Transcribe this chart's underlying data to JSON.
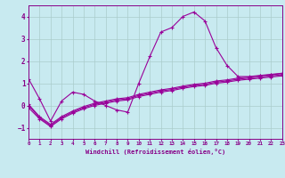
{
  "xlabel": "Windchill (Refroidissement éolien,°C)",
  "bg_color": "#c8eaf0",
  "line_color": "#990099",
  "xlim": [
    0,
    23
  ],
  "ylim": [
    -1.5,
    4.5
  ],
  "yticks": [
    -1,
    0,
    1,
    2,
    3,
    4
  ],
  "xticks": [
    0,
    1,
    2,
    3,
    4,
    5,
    6,
    7,
    8,
    9,
    10,
    11,
    12,
    13,
    14,
    15,
    16,
    17,
    18,
    19,
    20,
    21,
    22,
    23
  ],
  "series1_x": [
    0,
    1,
    2,
    3,
    4,
    5,
    6,
    7,
    8,
    9,
    10,
    11,
    12,
    13,
    14,
    15,
    16,
    17,
    18,
    19,
    20,
    21,
    22,
    23
  ],
  "series1_y": [
    1.2,
    0.3,
    -0.7,
    0.2,
    0.6,
    0.5,
    0.2,
    0.0,
    -0.2,
    -0.3,
    1.0,
    2.2,
    3.3,
    3.5,
    4.0,
    4.2,
    3.8,
    2.6,
    1.8,
    1.3,
    1.3,
    1.35,
    1.4,
    1.45
  ],
  "series2_x": [
    0,
    1,
    2,
    3,
    4,
    5,
    6,
    7,
    8,
    9,
    10,
    11,
    12,
    13,
    14,
    15,
    16,
    17,
    18,
    19,
    20,
    21,
    22,
    23
  ],
  "series2_y": [
    0.05,
    -0.5,
    -0.85,
    -0.5,
    -0.25,
    -0.05,
    0.1,
    0.2,
    0.3,
    0.35,
    0.5,
    0.6,
    0.7,
    0.77,
    0.87,
    0.95,
    1.0,
    1.1,
    1.15,
    1.23,
    1.28,
    1.33,
    1.38,
    1.43
  ],
  "series3_x": [
    0,
    1,
    2,
    3,
    4,
    5,
    6,
    7,
    8,
    9,
    10,
    11,
    12,
    13,
    14,
    15,
    16,
    17,
    18,
    19,
    20,
    21,
    22,
    23
  ],
  "series3_y": [
    -0.1,
    -0.6,
    -0.95,
    -0.6,
    -0.35,
    -0.15,
    0.0,
    0.1,
    0.2,
    0.25,
    0.4,
    0.5,
    0.6,
    0.67,
    0.77,
    0.85,
    0.9,
    1.0,
    1.05,
    1.13,
    1.18,
    1.23,
    1.28,
    1.33
  ],
  "series4_x": [
    0,
    1,
    2,
    3,
    4,
    5,
    6,
    7,
    8,
    9,
    10,
    11,
    12,
    13,
    14,
    15,
    16,
    17,
    18,
    19,
    20,
    21,
    22,
    23
  ],
  "series4_y": [
    0.0,
    -0.55,
    -0.9,
    -0.55,
    -0.3,
    -0.1,
    0.05,
    0.15,
    0.25,
    0.3,
    0.45,
    0.55,
    0.65,
    0.72,
    0.82,
    0.9,
    0.95,
    1.05,
    1.1,
    1.18,
    1.23,
    1.28,
    1.33,
    1.38
  ],
  "grid_color": "#aacccc",
  "font_color": "#880088"
}
